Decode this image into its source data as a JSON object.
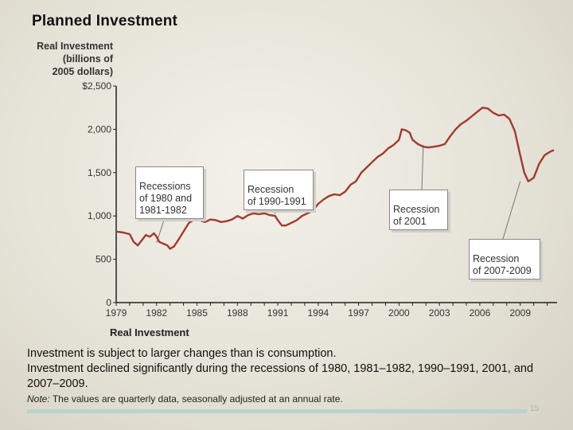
{
  "slide": {
    "title": "Planned Investment",
    "ylabel": "Real Investment\n(billions of\n2005 dollars)",
    "caption": "Real Investment",
    "bullets": [
      "Investment is subject to larger changes than is consumption.",
      "Investment declined significantly during the recessions of 1980, 1981–1982, 1990–1991, 2001, and 2007–2009."
    ],
    "note_label": "Note:",
    "note_text": "The values are quarterly data, seasonally adjusted at an annual rate.",
    "page_number": "15"
  },
  "annotations": [
    {
      "id": "rec-1980",
      "text": "Recessions\nof 1980 and\n1981-1982",
      "target": [
        1982.0,
        690
      ]
    },
    {
      "id": "rec-1990",
      "text": "Recession\nof 1990-1991",
      "target": [
        1990.8,
        1020
      ]
    },
    {
      "id": "rec-2001",
      "text": "Recession\nof 2001",
      "target": [
        2001.8,
        1820
      ]
    },
    {
      "id": "rec-2007",
      "text": "Recession\nof 2007-2009",
      "target": [
        2009.0,
        1400
      ]
    }
  ],
  "chart_data": {
    "type": "line",
    "x_ticks": [
      "1979",
      "1982",
      "1985",
      "1988",
      "1991",
      "1994",
      "1997",
      "2000",
      "2003",
      "2006",
      "2009"
    ],
    "y_ticks": [
      "0",
      "500",
      "1,000",
      "1,500",
      "2,000",
      "$2,500"
    ],
    "xlim": [
      1979,
      2011.5
    ],
    "ylim": [
      0,
      2500
    ],
    "grid": false,
    "series": [
      {
        "color": "#a33a2e",
        "points": [
          [
            1979.0,
            820
          ],
          [
            1979.5,
            810
          ],
          [
            1980.0,
            790
          ],
          [
            1980.3,
            700
          ],
          [
            1980.6,
            660
          ],
          [
            1980.9,
            720
          ],
          [
            1981.2,
            780
          ],
          [
            1981.5,
            760
          ],
          [
            1981.8,
            800
          ],
          [
            1982.0,
            760
          ],
          [
            1982.2,
            700
          ],
          [
            1982.5,
            680
          ],
          [
            1982.8,
            660
          ],
          [
            1983.0,
            620
          ],
          [
            1983.3,
            650
          ],
          [
            1983.6,
            720
          ],
          [
            1984.0,
            820
          ],
          [
            1984.4,
            920
          ],
          [
            1984.8,
            960
          ],
          [
            1985.2,
            950
          ],
          [
            1985.6,
            930
          ],
          [
            1986.0,
            960
          ],
          [
            1986.4,
            950
          ],
          [
            1986.8,
            930
          ],
          [
            1987.2,
            940
          ],
          [
            1987.6,
            960
          ],
          [
            1988.0,
            1000
          ],
          [
            1988.4,
            970
          ],
          [
            1988.8,
            1010
          ],
          [
            1989.2,
            1030
          ],
          [
            1989.6,
            1020
          ],
          [
            1990.0,
            1030
          ],
          [
            1990.4,
            1010
          ],
          [
            1990.8,
            1000
          ],
          [
            1991.0,
            950
          ],
          [
            1991.3,
            890
          ],
          [
            1991.6,
            890
          ],
          [
            1992.0,
            920
          ],
          [
            1992.4,
            950
          ],
          [
            1992.8,
            1000
          ],
          [
            1993.2,
            1030
          ],
          [
            1993.6,
            1060
          ],
          [
            1994.0,
            1140
          ],
          [
            1994.4,
            1190
          ],
          [
            1994.8,
            1230
          ],
          [
            1995.2,
            1250
          ],
          [
            1995.6,
            1240
          ],
          [
            1996.0,
            1280
          ],
          [
            1996.4,
            1360
          ],
          [
            1996.8,
            1400
          ],
          [
            1997.2,
            1500
          ],
          [
            1997.6,
            1560
          ],
          [
            1998.0,
            1620
          ],
          [
            1998.4,
            1680
          ],
          [
            1998.8,
            1720
          ],
          [
            1999.2,
            1780
          ],
          [
            1999.6,
            1820
          ],
          [
            2000.0,
            1880
          ],
          [
            2000.2,
            2000
          ],
          [
            2000.5,
            1990
          ],
          [
            2000.8,
            1960
          ],
          [
            2001.0,
            1880
          ],
          [
            2001.4,
            1830
          ],
          [
            2001.8,
            1800
          ],
          [
            2002.2,
            1790
          ],
          [
            2002.6,
            1800
          ],
          [
            2003.0,
            1810
          ],
          [
            2003.4,
            1830
          ],
          [
            2003.8,
            1920
          ],
          [
            2004.2,
            2000
          ],
          [
            2004.6,
            2060
          ],
          [
            2005.0,
            2100
          ],
          [
            2005.4,
            2150
          ],
          [
            2005.8,
            2200
          ],
          [
            2006.2,
            2250
          ],
          [
            2006.6,
            2240
          ],
          [
            2007.0,
            2190
          ],
          [
            2007.4,
            2160
          ],
          [
            2007.8,
            2170
          ],
          [
            2008.2,
            2120
          ],
          [
            2008.6,
            1980
          ],
          [
            2009.0,
            1700
          ],
          [
            2009.3,
            1500
          ],
          [
            2009.6,
            1400
          ],
          [
            2010.0,
            1440
          ],
          [
            2010.4,
            1600
          ],
          [
            2010.8,
            1700
          ],
          [
            2011.2,
            1740
          ],
          [
            2011.5,
            1760
          ]
        ]
      }
    ]
  }
}
